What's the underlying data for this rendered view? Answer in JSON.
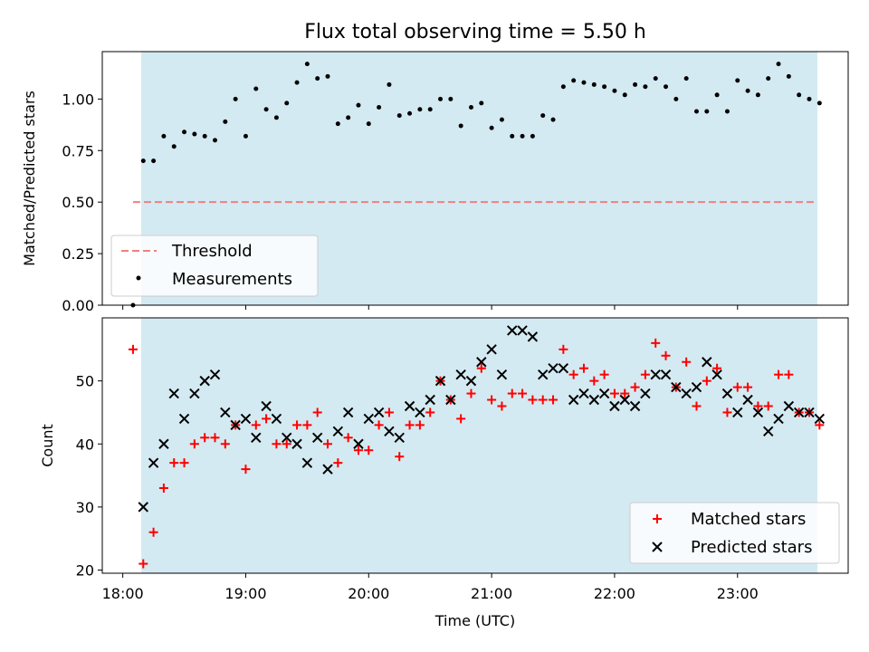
{
  "chart_data": [
    {
      "type": "scatter",
      "title": "Flux total observing time = 5.50 h",
      "ylabel": "Matched/Predicted stars",
      "xlabel": "",
      "xlim": [
        "17:50",
        "23:54"
      ],
      "ylim": [
        0,
        1.23
      ],
      "yticks": [
        "0.00",
        "0.25",
        "0.50",
        "0.75",
        "1.00"
      ],
      "shaded_span": [
        "18:09",
        "23:39"
      ],
      "shade_color": "#add8e6",
      "threshold": {
        "name": "Threshold",
        "value": 0.5,
        "x_from": "18:05",
        "x_to": "23:39",
        "color": "#f08080"
      },
      "series": [
        {
          "name": "Measurements",
          "color": "#000000",
          "x": [
            "18:05",
            "18:10",
            "18:15",
            "18:20",
            "18:25",
            "18:30",
            "18:35",
            "18:40",
            "18:45",
            "18:50",
            "18:55",
            "19:00",
            "19:05",
            "19:10",
            "19:15",
            "19:20",
            "19:25",
            "19:30",
            "19:35",
            "19:40",
            "19:45",
            "19:50",
            "19:55",
            "20:00",
            "20:05",
            "20:10",
            "20:15",
            "20:20",
            "20:25",
            "20:30",
            "20:35",
            "20:40",
            "20:45",
            "20:50",
            "20:55",
            "21:00",
            "21:05",
            "21:10",
            "21:15",
            "21:20",
            "21:25",
            "21:30",
            "21:35",
            "21:40",
            "21:45",
            "21:50",
            "21:55",
            "22:00",
            "22:05",
            "22:10",
            "22:15",
            "22:20",
            "22:25",
            "22:30",
            "22:35",
            "22:40",
            "22:45",
            "22:50",
            "22:55",
            "23:00",
            "23:05",
            "23:10",
            "23:15",
            "23:20",
            "23:25",
            "23:30",
            "23:35",
            "23:40"
          ],
          "y": [
            0.0,
            0.7,
            0.7,
            0.82,
            0.77,
            0.84,
            0.83,
            0.82,
            0.8,
            0.89,
            1.0,
            0.82,
            1.05,
            0.95,
            0.91,
            0.98,
            1.08,
            1.17,
            1.1,
            1.11,
            0.88,
            0.91,
            0.97,
            0.88,
            0.96,
            1.07,
            0.92,
            0.93,
            0.95,
            0.95,
            1.0,
            1.0,
            0.87,
            0.96,
            0.98,
            0.86,
            0.9,
            0.82,
            0.82,
            0.82,
            0.92,
            0.9,
            1.06,
            1.09,
            1.08,
            1.07,
            1.06,
            1.04,
            1.02,
            1.07,
            1.06,
            1.1,
            1.06,
            1.0,
            1.1,
            0.94,
            0.94,
            1.02,
            0.94,
            1.09,
            1.04,
            1.02,
            1.1,
            1.17,
            1.11,
            1.02,
            1.0,
            0.98
          ]
        }
      ]
    },
    {
      "type": "scatter",
      "title": "",
      "ylabel": "Count",
      "xlabel": "Time (UTC)",
      "xlim": [
        "17:50",
        "23:54"
      ],
      "ylim": [
        19.5,
        60
      ],
      "yticks": [
        "20",
        "30",
        "40",
        "50"
      ],
      "xticks": [
        "18:00",
        "19:00",
        "20:00",
        "21:00",
        "22:00",
        "23:00"
      ],
      "shaded_span": [
        "18:09",
        "23:39"
      ],
      "shade_color": "#add8e6",
      "series": [
        {
          "name": "Matched stars",
          "marker": "+",
          "color": "#ff0000",
          "x": [
            "18:05",
            "18:10",
            "18:15",
            "18:20",
            "18:25",
            "18:30",
            "18:35",
            "18:40",
            "18:45",
            "18:50",
            "18:55",
            "19:00",
            "19:05",
            "19:10",
            "19:15",
            "19:20",
            "19:25",
            "19:30",
            "19:35",
            "19:40",
            "19:45",
            "19:50",
            "19:55",
            "20:00",
            "20:05",
            "20:10",
            "20:15",
            "20:20",
            "20:25",
            "20:30",
            "20:35",
            "20:40",
            "20:45",
            "20:50",
            "20:55",
            "21:00",
            "21:05",
            "21:10",
            "21:15",
            "21:20",
            "21:25",
            "21:30",
            "21:35",
            "21:40",
            "21:45",
            "21:50",
            "21:55",
            "22:00",
            "22:05",
            "22:10",
            "22:15",
            "22:20",
            "22:25",
            "22:30",
            "22:35",
            "22:40",
            "22:45",
            "22:50",
            "22:55",
            "23:00",
            "23:05",
            "23:10",
            "23:15",
            "23:20",
            "23:25",
            "23:30",
            "23:35",
            "23:40"
          ],
          "y": [
            55,
            21,
            26,
            33,
            37,
            37,
            40,
            41,
            41,
            40,
            43,
            36,
            43,
            44,
            40,
            40,
            43,
            43,
            45,
            40,
            37,
            41,
            39,
            39,
            43,
            45,
            38,
            43,
            43,
            45,
            50,
            47,
            44,
            48,
            52,
            47,
            46,
            48,
            48,
            47,
            47,
            47,
            55,
            51,
            52,
            50,
            51,
            48,
            48,
            49,
            51,
            56,
            54,
            49,
            53,
            46,
            50,
            52,
            45,
            49,
            49,
            46,
            46,
            51,
            51,
            45,
            45,
            43
          ]
        },
        {
          "name": "Predicted stars",
          "marker": "x",
          "color": "#000000",
          "x": [
            "18:10",
            "18:15",
            "18:20",
            "18:25",
            "18:30",
            "18:35",
            "18:40",
            "18:45",
            "18:50",
            "18:55",
            "19:00",
            "19:05",
            "19:10",
            "19:15",
            "19:20",
            "19:25",
            "19:30",
            "19:35",
            "19:40",
            "19:45",
            "19:50",
            "19:55",
            "20:00",
            "20:05",
            "20:10",
            "20:15",
            "20:20",
            "20:25",
            "20:30",
            "20:35",
            "20:40",
            "20:45",
            "20:50",
            "20:55",
            "21:00",
            "21:05",
            "21:10",
            "21:15",
            "21:20",
            "21:25",
            "21:30",
            "21:35",
            "21:40",
            "21:45",
            "21:50",
            "21:55",
            "22:00",
            "22:05",
            "22:10",
            "22:15",
            "22:20",
            "22:25",
            "22:30",
            "22:35",
            "22:40",
            "22:45",
            "22:50",
            "22:55",
            "23:00",
            "23:05",
            "23:10",
            "23:15",
            "23:20",
            "23:25",
            "23:30",
            "23:35",
            "23:40"
          ],
          "y": [
            30,
            37,
            40,
            48,
            44,
            48,
            50,
            51,
            45,
            43,
            44,
            41,
            46,
            44,
            41,
            40,
            37,
            41,
            36,
            42,
            45,
            40,
            44,
            45,
            42,
            41,
            46,
            45,
            47,
            50,
            47,
            51,
            50,
            53,
            55,
            51,
            58,
            58,
            57,
            51,
            52,
            52,
            47,
            48,
            47,
            48,
            46,
            47,
            46,
            48,
            51,
            51,
            49,
            48,
            49,
            53,
            51,
            48,
            45,
            47,
            45,
            42,
            44,
            46,
            45,
            45,
            44
          ]
        }
      ]
    }
  ]
}
